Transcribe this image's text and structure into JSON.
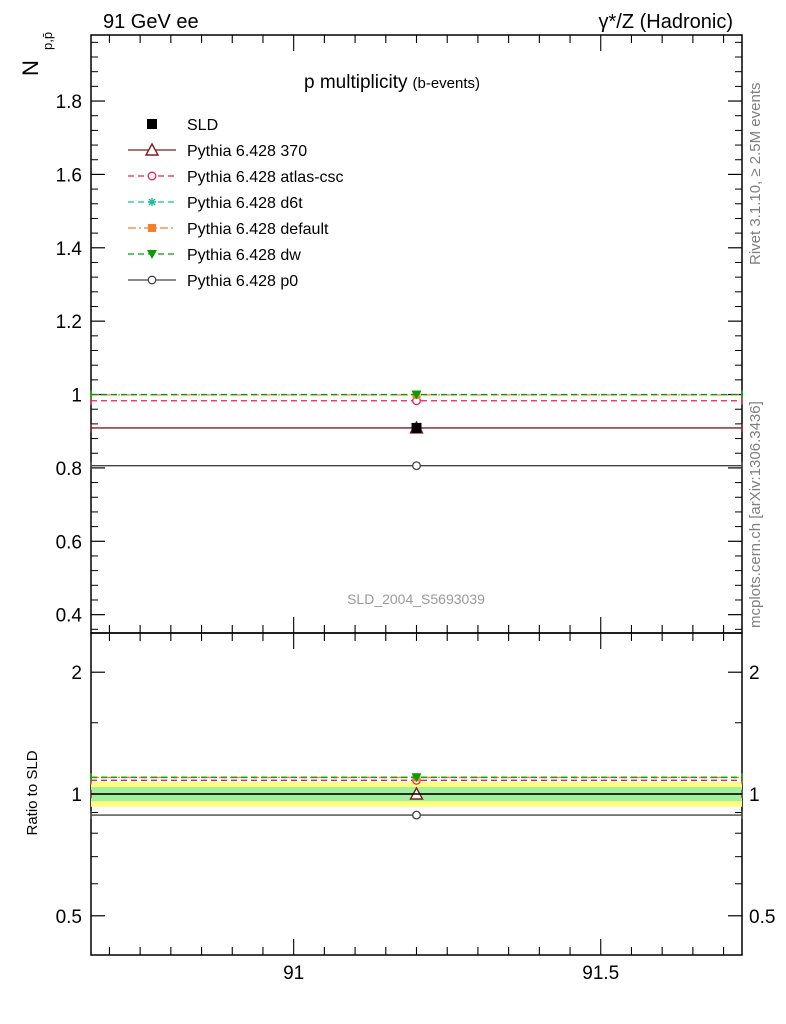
{
  "chart_data": [
    {
      "type": "line",
      "panel": "main",
      "top_left_label": "91 GeV ee",
      "top_right_label": "γ*/Z (Hadronic)",
      "title": "p multiplicity",
      "title_suffix": "(b-events)",
      "ylabel": "N",
      "ylabel_sub": "p,p̄",
      "xlim": [
        90.67,
        91.73
      ],
      "ylim": [
        0.35,
        1.98
      ],
      "y_ticks": [
        0.4,
        0.6,
        0.8,
        1,
        1.2,
        1.4,
        1.6,
        1.8
      ],
      "y_tick_labels": [
        "0.4",
        "0.6",
        "0.8",
        "1",
        "1.2",
        "1.4",
        "1.6",
        "1.8"
      ],
      "x_range": [
        90.67,
        91.73
      ],
      "bin_center": 91.2,
      "data": {
        "name": "SLD",
        "y": 0.909,
        "color": "#000000"
      },
      "series": [
        {
          "name": "Pythia 6.428 370",
          "y": 0.909,
          "color": "#7f1d1d",
          "marker": "open-triangle",
          "dash": "solid"
        },
        {
          "name": "Pythia 6.428 atlas-csc",
          "y": 0.983,
          "color": "#e8244f",
          "marker": "open-circle",
          "dash": "dashed"
        },
        {
          "name": "Pythia 6.428 d6t",
          "y": 0.999,
          "color": "#1abc9c",
          "marker": "asterisk",
          "dash": "dashed"
        },
        {
          "name": "Pythia 6.428 default",
          "y": 0.999,
          "color": "#f57f2a",
          "marker": "filled-square",
          "dash": "dashdot"
        },
        {
          "name": "Pythia 6.428 dw",
          "y": 1.0,
          "color": "#00a000",
          "marker": "filled-triangle-down",
          "dash": "dashed"
        },
        {
          "name": "Pythia 6.428 p0",
          "y": 0.806,
          "color": "#444444",
          "marker": "open-circle",
          "dash": "solid"
        }
      ],
      "watermark": "SLD_2004_S5693039",
      "side_label_rivet": "Rivet 3.1.10, ≥ 2.5M events",
      "side_label_mcplots": "mcplots.cern.ch [arXiv:1306.3436]",
      "legend_position": "top-left",
      "grid": false
    },
    {
      "type": "line",
      "panel": "ratio",
      "ylabel": "Ratio to SLD",
      "yscale": "log",
      "ylim": [
        0.4,
        2.5
      ],
      "y_ticks": [
        0.5,
        1,
        2
      ],
      "y_tick_labels": [
        "0.5",
        "1",
        "2"
      ],
      "x_ticks": [
        91,
        91.5
      ],
      "x_tick_labels": [
        "91",
        "91.5"
      ],
      "xlim": [
        90.67,
        91.73
      ],
      "band_inner": [
        0.96,
        1.04
      ],
      "band_outer": [
        0.93,
        1.07
      ],
      "series_ratios": [
        {
          "name": "Pythia 6.428 370",
          "y": 1.0
        },
        {
          "name": "Pythia 6.428 atlas-csc",
          "y": 1.081
        },
        {
          "name": "Pythia 6.428 d6t",
          "y": 1.099
        },
        {
          "name": "Pythia 6.428 default",
          "y": 1.099
        },
        {
          "name": "Pythia 6.428 dw",
          "y": 1.1
        },
        {
          "name": "Pythia 6.428 p0",
          "y": 0.887
        }
      ]
    }
  ]
}
